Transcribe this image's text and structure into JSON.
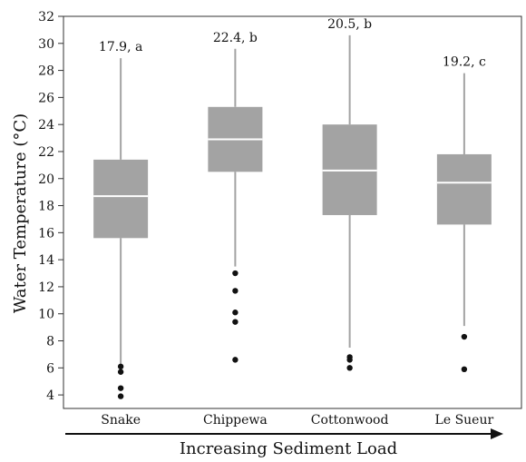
{
  "chart_data": {
    "type": "box",
    "ylabel": "Water Temperature (°C)",
    "xlabel": "Increasing Sediment Load",
    "ylim": [
      3,
      32
    ],
    "yticks": [
      4,
      6,
      8,
      10,
      12,
      14,
      16,
      18,
      20,
      22,
      24,
      26,
      28,
      30,
      32
    ],
    "grid": false,
    "categories": [
      "Snake",
      "Chippewa",
      "Cottonwood",
      "Le Sueur"
    ],
    "boxes": [
      {
        "category": "Snake",
        "annotation": "17.9, a",
        "whisker_low": 6.3,
        "q1": 15.6,
        "median": 18.7,
        "q3": 21.4,
        "whisker_high": 28.9,
        "outliers": [
          6.1,
          5.7,
          4.5,
          3.9
        ]
      },
      {
        "category": "Chippewa",
        "annotation": "22.4, b",
        "whisker_low": 13.5,
        "q1": 20.5,
        "median": 22.9,
        "q3": 25.3,
        "whisker_high": 29.6,
        "outliers": [
          13.0,
          11.7,
          10.1,
          9.4,
          6.6
        ]
      },
      {
        "category": "Cottonwood",
        "annotation": "20.5, b",
        "whisker_low": 7.5,
        "q1": 17.3,
        "median": 20.6,
        "q3": 24.0,
        "whisker_high": 30.6,
        "outliers": [
          6.8,
          6.6,
          6.0
        ]
      },
      {
        "category": "Le Sueur",
        "annotation": "19.2, c",
        "whisker_low": 9.1,
        "q1": 16.6,
        "median": 19.7,
        "q3": 21.8,
        "whisker_high": 27.8,
        "outliers": [
          8.3,
          5.9
        ]
      }
    ],
    "colors": {
      "box": "#a3a3a3",
      "median": "#ffffff",
      "whisker": "#a3a3a3",
      "outlier": "#111111",
      "axis": "#333333"
    }
  }
}
